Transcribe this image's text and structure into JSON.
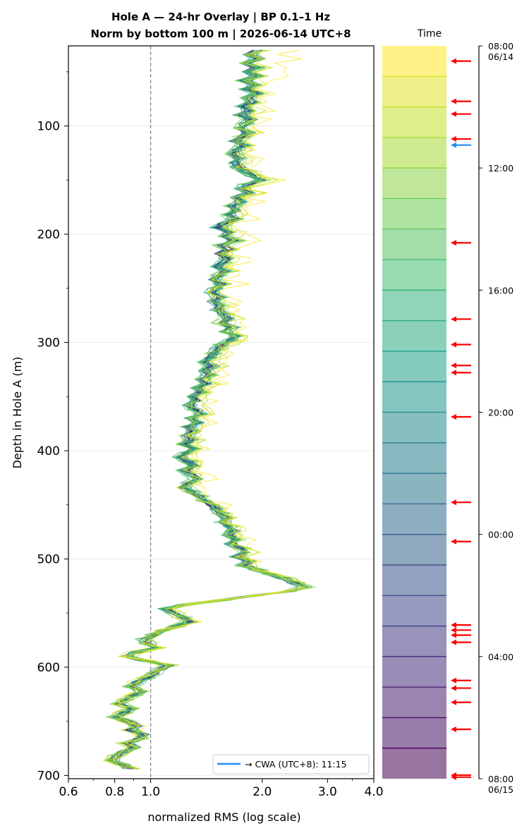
{
  "title_line1": "Hole A — 24-hr Overlay  |  BP 0.1–1 Hz",
  "title_line2": "Norm by bottom 100 m  |  2026-06-14 UTC+8",
  "colors": {
    "event_arrow": "#ff0000",
    "cwa_arrow": "#1e90ff",
    "reference_line": "#808080",
    "grid": "#e6e6e6"
  },
  "chart_data": {
    "type": "line",
    "xlabel": "normalized RMS  (log scale)",
    "ylabel": "Depth in Hole A (m)",
    "xscale": "log",
    "xlim": [
      0.6,
      4.0
    ],
    "ylim": [
      703,
      26
    ],
    "x_ticks": [
      {
        "value": 0.6,
        "label": "0.6"
      },
      {
        "value": 0.8,
        "label": "0.8"
      },
      {
        "value": 1.0,
        "label": "1.0"
      },
      {
        "value": 2.0,
        "label": "2.0"
      },
      {
        "value": 3.0,
        "label": "3.0"
      },
      {
        "value": 4.0,
        "label": "4.0"
      }
    ],
    "y_ticks": [
      100,
      200,
      300,
      400,
      500,
      600,
      700
    ],
    "y_minor_ticks": [
      50,
      150,
      250,
      350,
      450,
      550,
      650
    ],
    "reference_line_x": 1.0,
    "grid": "horizontal",
    "legend": {
      "position": "lower right",
      "label": "→ CWA (UTC+8): 11:15"
    },
    "num_profiles": 24,
    "colormap": "viridis",
    "depth_top": 30,
    "depth_bottom": 694,
    "base_profile": {
      "depth": [
        30,
        34,
        38,
        42,
        46,
        50,
        54,
        58,
        62,
        66,
        70,
        74,
        78,
        82,
        86,
        90,
        94,
        98,
        102,
        106,
        110,
        114,
        118,
        122,
        126,
        130,
        134,
        138,
        142,
        146,
        150,
        154,
        158,
        162,
        166,
        170,
        174,
        178,
        182,
        186,
        190,
        194,
        198,
        202,
        206,
        210,
        214,
        218,
        222,
        226,
        230,
        234,
        238,
        242,
        246,
        250,
        254,
        258,
        262,
        266,
        270,
        274,
        278,
        282,
        286,
        290,
        294,
        298,
        302,
        306,
        310,
        314,
        318,
        322,
        326,
        330,
        334,
        338,
        342,
        346,
        350,
        354,
        358,
        362,
        366,
        370,
        374,
        378,
        382,
        386,
        390,
        394,
        398,
        402,
        406,
        410,
        414,
        418,
        422,
        426,
        430,
        434,
        438,
        442,
        446,
        450,
        454,
        458,
        462,
        466,
        470,
        474,
        478,
        482,
        486,
        490,
        494,
        498,
        502,
        506,
        510,
        514,
        518,
        522,
        526,
        530,
        534,
        538,
        542,
        546,
        550,
        554,
        558,
        562,
        566,
        570,
        574,
        578,
        582,
        586,
        590,
        594,
        598,
        602,
        606,
        610,
        614,
        618,
        622,
        626,
        630,
        634,
        638,
        642,
        646,
        650,
        654,
        658,
        662,
        666,
        670,
        674,
        678,
        682,
        686,
        690,
        694
      ],
      "rms": [
        1.94,
        1.85,
        1.96,
        1.8,
        1.93,
        1.82,
        1.94,
        1.79,
        1.9,
        1.82,
        1.95,
        1.83,
        1.88,
        1.78,
        1.84,
        1.75,
        1.86,
        1.8,
        1.73,
        1.82,
        1.76,
        1.7,
        1.78,
        1.72,
        1.68,
        1.74,
        1.69,
        1.72,
        1.8,
        1.88,
        2.0,
        1.82,
        1.76,
        1.84,
        1.7,
        1.74,
        1.66,
        1.72,
        1.64,
        1.69,
        1.58,
        1.52,
        1.64,
        1.58,
        1.69,
        1.55,
        1.63,
        1.54,
        1.6,
        1.57,
        1.51,
        1.59,
        1.53,
        1.48,
        1.56,
        1.5,
        1.46,
        1.53,
        1.48,
        1.55,
        1.5,
        1.58,
        1.62,
        1.55,
        1.66,
        1.6,
        1.7,
        1.64,
        1.56,
        1.52,
        1.48,
        1.45,
        1.42,
        1.47,
        1.4,
        1.44,
        1.38,
        1.42,
        1.34,
        1.37,
        1.3,
        1.33,
        1.27,
        1.32,
        1.36,
        1.29,
        1.33,
        1.26,
        1.3,
        1.24,
        1.28,
        1.22,
        1.3,
        1.25,
        1.21,
        1.27,
        1.31,
        1.24,
        1.29,
        1.33,
        1.26,
        1.22,
        1.3,
        1.36,
        1.4,
        1.46,
        1.5,
        1.55,
        1.6,
        1.57,
        1.63,
        1.68,
        1.62,
        1.7,
        1.66,
        1.74,
        1.8,
        1.72,
        1.85,
        1.78,
        1.95,
        2.1,
        2.3,
        2.45,
        2.6,
        2.35,
        1.9,
        1.55,
        1.25,
        1.1,
        1.16,
        1.22,
        1.28,
        1.18,
        1.08,
        1.02,
        0.96,
        0.98,
        1.04,
        0.92,
        0.86,
        0.96,
        1.12,
        1.06,
        1.02,
        0.97,
        0.92,
        0.88,
        0.94,
        0.9,
        0.86,
        0.82,
        0.9,
        0.85,
        0.8,
        0.87,
        0.92,
        0.88,
        0.96,
        0.93,
        0.86,
        0.9,
        0.84,
        0.81,
        0.79,
        0.84,
        0.88,
        0.83
      ]
    },
    "colorbar": {
      "label": "Time",
      "ticks": [
        "08:00\n06/14",
        "12:00",
        "16:00",
        "20:00",
        "00:00",
        "04:00",
        "08:00\n06/15"
      ],
      "num_bands": 24
    },
    "event_arrows_minutes": [
      30,
      109,
      134,
      183,
      387,
      537,
      587,
      628,
      642,
      729,
      897,
      974,
      1138,
      1148,
      1158,
      1172,
      1247,
      1262,
      1290,
      1343,
      1433,
      1437
    ],
    "cwa_arrow_minutes": 195
  }
}
